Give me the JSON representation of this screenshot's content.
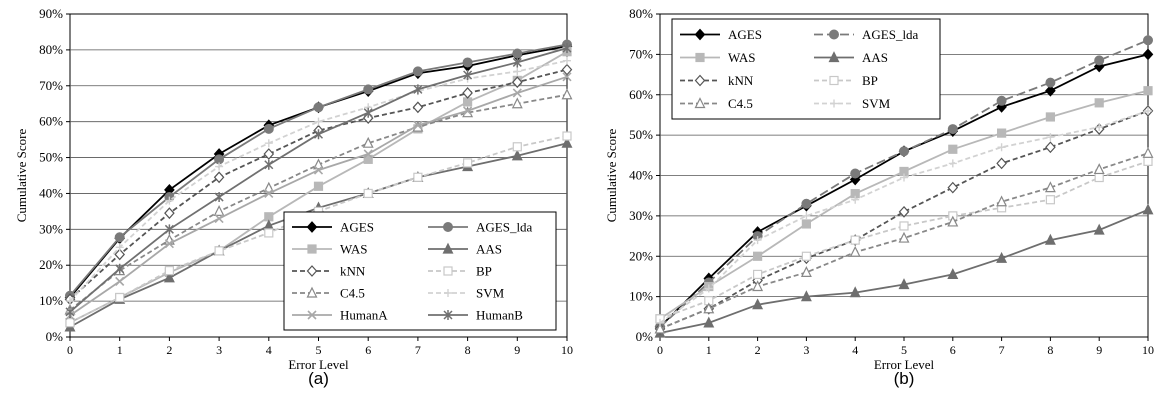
{
  "chart_data": [
    {
      "type": "line",
      "panel_label": "(a)",
      "xlabel": "Error Level",
      "ylabel": "Cumulative Score",
      "x": [
        0,
        1,
        2,
        3,
        4,
        5,
        6,
        7,
        8,
        9,
        10
      ],
      "ylim": [
        0,
        90
      ],
      "yticks": [
        "0%",
        "10%",
        "20%",
        "30%",
        "40%",
        "50%",
        "60%",
        "70%",
        "80%",
        "90%"
      ],
      "grid": true,
      "legend_position": "bottom-right",
      "series": [
        {
          "name": "AGES",
          "color": "#000000",
          "dash": "solid",
          "marker": "diamond",
          "values": [
            11,
            27.5,
            41,
            51,
            59,
            64,
            68.5,
            73.5,
            75.5,
            78.5,
            81
          ]
        },
        {
          "name": "AGES_lda",
          "color": "#7a7a7a",
          "dash": "solid",
          "marker": "circle",
          "values": [
            11.5,
            27.8,
            39,
            49.5,
            58,
            64,
            69,
            74,
            76.5,
            79,
            81.5
          ]
        },
        {
          "name": "WAS",
          "color": "#b8b8b8",
          "dash": "solid",
          "marker": "square",
          "values": [
            4,
            11,
            18,
            24,
            33.5,
            42,
            49.5,
            58,
            65.5,
            71.5,
            79.5
          ]
        },
        {
          "name": "AAS",
          "color": "#6e6e6e",
          "dash": "solid",
          "marker": "triangle",
          "values": [
            2.8,
            10.5,
            16.5,
            24,
            31,
            36,
            40,
            44.5,
            47.5,
            50.5,
            54
          ]
        },
        {
          "name": "kNN",
          "color": "#555555",
          "dash": "dash",
          "marker": "diamond-open",
          "values": [
            10.5,
            23,
            34.5,
            44.5,
            51,
            57.5,
            61,
            64,
            68,
            71,
            74.5
          ]
        },
        {
          "name": "BP",
          "color": "#c8c8c8",
          "dash": "dash",
          "marker": "square-open",
          "values": [
            4,
            11,
            18.5,
            24,
            29,
            35,
            40,
            44.5,
            48.5,
            53,
            56
          ]
        },
        {
          "name": "C4.5",
          "color": "#888888",
          "dash": "dash",
          "marker": "triangle-open",
          "values": [
            7.5,
            18.5,
            27,
            35,
            41.5,
            48,
            54,
            58.5,
            62.5,
            65,
            67.5
          ]
        },
        {
          "name": "SVM",
          "color": "#d2d2d2",
          "dash": "dash",
          "marker": "plus",
          "values": [
            10,
            25,
            38,
            47.5,
            54,
            60,
            64,
            68.5,
            72,
            74,
            77
          ]
        },
        {
          "name": "HumanA",
          "color": "#a8a8a8",
          "dash": "solid",
          "marker": "x",
          "values": [
            6,
            15.5,
            26,
            33,
            40,
            46.5,
            51,
            59,
            63,
            68,
            72.5
          ]
        },
        {
          "name": "HumanB",
          "color": "#707070",
          "dash": "solid",
          "marker": "asterisk",
          "values": [
            7,
            19,
            30,
            39,
            48,
            56.5,
            62.5,
            69,
            73,
            76.5,
            80.5
          ]
        }
      ]
    },
    {
      "type": "line",
      "panel_label": "(b)",
      "xlabel": "Error Level",
      "ylabel": "Cumulative Score",
      "x": [
        0,
        1,
        2,
        3,
        4,
        5,
        6,
        7,
        8,
        9,
        10
      ],
      "ylim": [
        0,
        80
      ],
      "yticks": [
        "0%",
        "10%",
        "20%",
        "30%",
        "40%",
        "50%",
        "60%",
        "70%",
        "80%"
      ],
      "grid": true,
      "legend_position": "top-left",
      "series": [
        {
          "name": "AGES",
          "color": "#000000",
          "dash": "solid",
          "marker": "diamond",
          "values": [
            2.5,
            14.5,
            26,
            32.5,
            39,
            46,
            51,
            57,
            61,
            67,
            70
          ]
        },
        {
          "name": "AGES_lda",
          "color": "#7a7a7a",
          "dash": "longdash",
          "marker": "circle",
          "values": [
            2.5,
            13.5,
            25,
            33,
            40.5,
            46,
            51.5,
            58.5,
            63,
            68.5,
            73.5
          ]
        },
        {
          "name": "WAS",
          "color": "#b8b8b8",
          "dash": "solid",
          "marker": "square",
          "values": [
            4.5,
            12.5,
            20,
            28,
            35.5,
            41,
            46.5,
            50.5,
            54.5,
            58,
            61
          ]
        },
        {
          "name": "AAS",
          "color": "#6e6e6e",
          "dash": "solid",
          "marker": "triangle",
          "values": [
            1,
            3.5,
            8,
            10,
            11,
            13,
            15.5,
            19.5,
            24,
            26.5,
            31.5
          ]
        },
        {
          "name": "kNN",
          "color": "#555555",
          "dash": "dash",
          "marker": "diamond-open",
          "values": [
            2,
            7,
            14,
            19.5,
            24,
            31,
            37,
            43,
            47,
            51.5,
            56
          ]
        },
        {
          "name": "BP",
          "color": "#c8c8c8",
          "dash": "dash",
          "marker": "square-open",
          "values": [
            4.5,
            9,
            15.5,
            20,
            24,
            27.5,
            30,
            32,
            34,
            39.5,
            43.5
          ]
        },
        {
          "name": "C4.5",
          "color": "#888888",
          "dash": "dash",
          "marker": "triangle-open",
          "values": [
            2,
            7,
            12.5,
            16,
            21,
            24.5,
            28.5,
            33.5,
            37,
            41.5,
            45.5
          ]
        },
        {
          "name": "SVM",
          "color": "#d2d2d2",
          "dash": "dash",
          "marker": "plus",
          "values": [
            3.5,
            12,
            24,
            30,
            34,
            39.5,
            43,
            47,
            49.5,
            52,
            56
          ]
        }
      ]
    }
  ]
}
